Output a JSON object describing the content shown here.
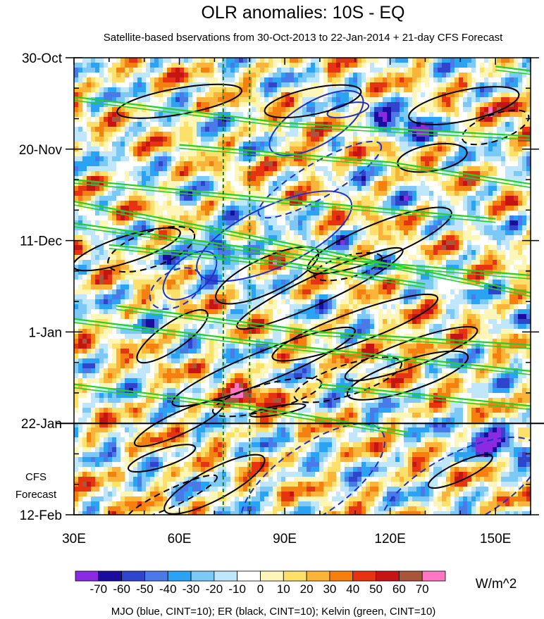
{
  "chart_data": {
    "type": "heatmap",
    "title": "OLR anomalies: 10S - EQ",
    "subtitle": "Satellite-based bservations from 30-Oct-2013 to 22-Jan-2014 + 21-day CFS Forecast",
    "x_ticks": [
      {
        "value": 30,
        "label": "30E"
      },
      {
        "value": 60,
        "label": "60E"
      },
      {
        "value": 90,
        "label": "90E"
      },
      {
        "value": 120,
        "label": "120E"
      },
      {
        "value": 150,
        "label": "150E"
      }
    ],
    "xlim": [
      30,
      160
    ],
    "y_ticks": [
      {
        "value": 0,
        "label": "30-Oct"
      },
      {
        "value": 21,
        "label": "20-Nov"
      },
      {
        "value": 42,
        "label": "11-Dec"
      },
      {
        "value": 63,
        "label": "1-Jan"
      },
      {
        "value": 84,
        "label": "22-Jan"
      },
      {
        "value": 105,
        "label": "12-Feb"
      }
    ],
    "ylim_days": [
      0,
      105
    ],
    "observation_end_day": 84,
    "forecast_label": [
      "CFS",
      "Forecast"
    ],
    "reference_lons": [
      72.5,
      80
    ],
    "colorbar": {
      "unit": "W/m^2",
      "labels": [
        "-70",
        "-60",
        "-50",
        "-40",
        "-30",
        "-20",
        "-10",
        "0",
        "10",
        "20",
        "30",
        "40",
        "50",
        "60",
        "70"
      ],
      "colors": [
        "#8a2be2",
        "#1a0d9e",
        "#2f46cc",
        "#4a7ae8",
        "#2aa3f5",
        "#7cc8f7",
        "#bfe6fb",
        "#ffffff",
        "#fdf6b8",
        "#fde06a",
        "#fcb339",
        "#f6800f",
        "#e63312",
        "#c41414",
        "#a8553a",
        "#ff77c2"
      ]
    },
    "contour_legend": "MJO (blue, CINT=10); ER (black, CINT=10); Kelvin (green, CINT=10)",
    "features": [
      {
        "type": "positive",
        "lon": 95,
        "day": 23,
        "value": 45,
        "note": "red anomaly"
      },
      {
        "type": "positive",
        "lon": 157,
        "day": 11,
        "value": 40
      },
      {
        "type": "positive",
        "lon": 125,
        "day": 66,
        "value": 45
      },
      {
        "type": "positive",
        "lon": 80,
        "day": 78,
        "value": 50
      },
      {
        "type": "negative",
        "lon": 72,
        "day": 43,
        "value": -65,
        "note": "purple core"
      },
      {
        "type": "negative",
        "lon": 150,
        "day": 88,
        "value": -65
      },
      {
        "type": "negative",
        "lon": 124,
        "day": 15,
        "value": -55
      }
    ]
  }
}
